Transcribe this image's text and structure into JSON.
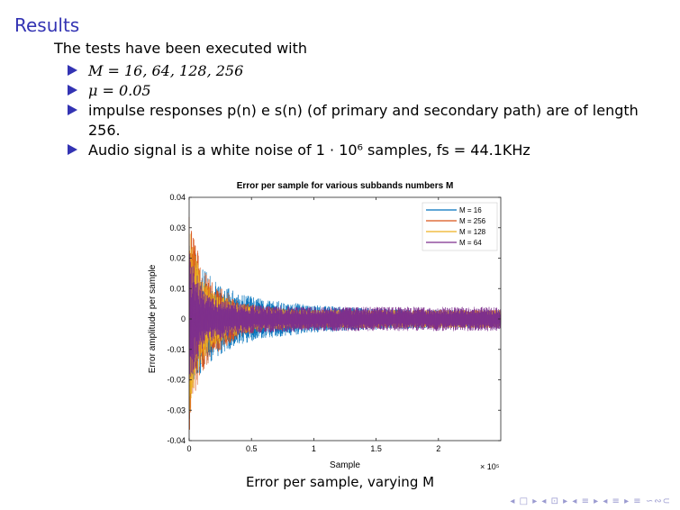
{
  "slide": {
    "title": "Results",
    "intro": "The tests have been executed with",
    "bullets": [
      "M = 16, 64, 128, 256",
      "μ = 0.05",
      "impulse responses p(n) e s(n) (of primary and secondary path) are of length 256.",
      "Audio signal is a white noise of 1 · 10⁶ samples, fs = 44.1KHz"
    ],
    "caption": "Error per sample, varying M",
    "nav": "◂ □ ▸ ◂ ⊡ ▸ ◂ ≡ ▸ ◂ ≡ ▸   ≡   ∽∾⊂"
  },
  "chart_data": {
    "type": "line",
    "title": "Error per sample for various subbands numbers M",
    "xlabel": "Sample",
    "ylabel": "Error amplitude per sample",
    "x_exponent_label": "× 10⁵",
    "xlim": [
      0,
      2.5
    ],
    "ylim": [
      -0.04,
      0.04
    ],
    "xticks": [
      0,
      0.5,
      1,
      1.5,
      2
    ],
    "yticks": [
      -0.04,
      -0.03,
      -0.02,
      -0.01,
      0,
      0.01,
      0.02,
      0.03,
      0.04
    ],
    "xtick_labels": [
      "0",
      "0.5",
      "1",
      "1.5",
      "2"
    ],
    "ytick_labels": [
      "-0.04",
      "-0.03",
      "-0.02",
      "-0.01",
      "0",
      "0.01",
      "0.02",
      "0.03",
      "0.04"
    ],
    "legend_position": "top-right",
    "series": [
      {
        "name": "M = 16",
        "color": "#0072bd",
        "envelope_x": [
          0,
          0.02,
          0.1,
          0.2,
          0.4,
          0.6,
          0.8,
          1.0,
          1.5,
          2.0,
          2.5
        ],
        "envelope_amp": [
          0.035,
          0.026,
          0.017,
          0.013,
          0.0085,
          0.0065,
          0.0055,
          0.0045,
          0.0035,
          0.003,
          0.0028
        ]
      },
      {
        "name": "M = 256",
        "color": "#d95319",
        "envelope_x": [
          0,
          0.02,
          0.1,
          0.2,
          0.4,
          0.6,
          0.8,
          1.0,
          1.5,
          2.0,
          2.5
        ],
        "envelope_amp": [
          0.04,
          0.03,
          0.018,
          0.012,
          0.006,
          0.004,
          0.0035,
          0.003,
          0.003,
          0.003,
          0.003
        ]
      },
      {
        "name": "M = 128",
        "color": "#edb120",
        "envelope_x": [
          0,
          0.02,
          0.1,
          0.2,
          0.4,
          0.6,
          0.8,
          1.0,
          1.5,
          2.0,
          2.5
        ],
        "envelope_amp": [
          0.035,
          0.025,
          0.014,
          0.009,
          0.005,
          0.0035,
          0.003,
          0.003,
          0.003,
          0.003,
          0.003
        ]
      },
      {
        "name": "M = 64",
        "color": "#7e2f8e",
        "envelope_x": [
          0,
          0.02,
          0.1,
          0.2,
          0.4,
          0.6,
          0.8,
          1.0,
          1.5,
          2.0,
          2.5
        ],
        "envelope_amp": [
          0.03,
          0.02,
          0.01,
          0.007,
          0.005,
          0.0045,
          0.0042,
          0.004,
          0.004,
          0.004,
          0.004
        ]
      }
    ]
  }
}
